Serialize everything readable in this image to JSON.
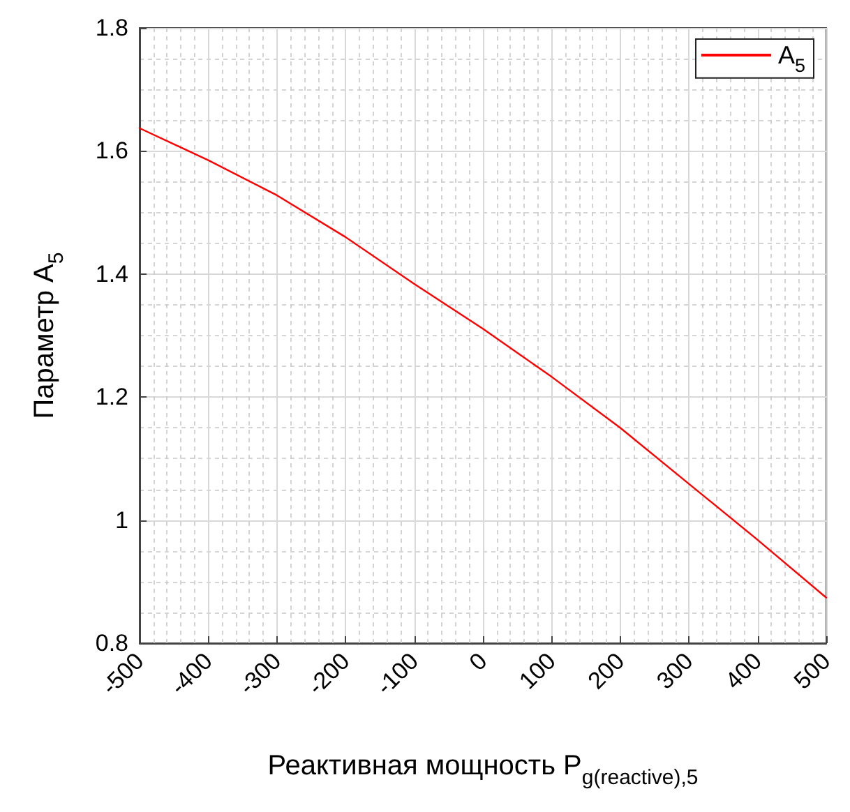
{
  "chart_data": {
    "type": "line",
    "xlabel": "Реактивная мощность P$_{g(reactive),5}$",
    "ylabel": "Параметр A$_{5}$",
    "x": [
      -500,
      -400,
      -300,
      -200,
      -100,
      0,
      100,
      200,
      300,
      400,
      500
    ],
    "series": [
      {
        "name": "A$_{5}$",
        "color": "#ff0000",
        "values": [
          1.637,
          1.585,
          1.528,
          1.46,
          1.384,
          1.311,
          1.233,
          1.15,
          1.059,
          0.968,
          0.874
        ]
      }
    ],
    "xlim": [
      -500,
      500
    ],
    "xticks": [
      -500,
      -400,
      -300,
      -200,
      -100,
      0,
      100,
      200,
      300,
      400,
      500
    ],
    "ylim": [
      0.8,
      1.8
    ],
    "yticks": [
      0.8,
      1,
      1.2,
      1.4,
      1.6,
      1.8
    ],
    "grid": true,
    "legend": "top right",
    "marker": "none",
    "line_style": "solid"
  }
}
